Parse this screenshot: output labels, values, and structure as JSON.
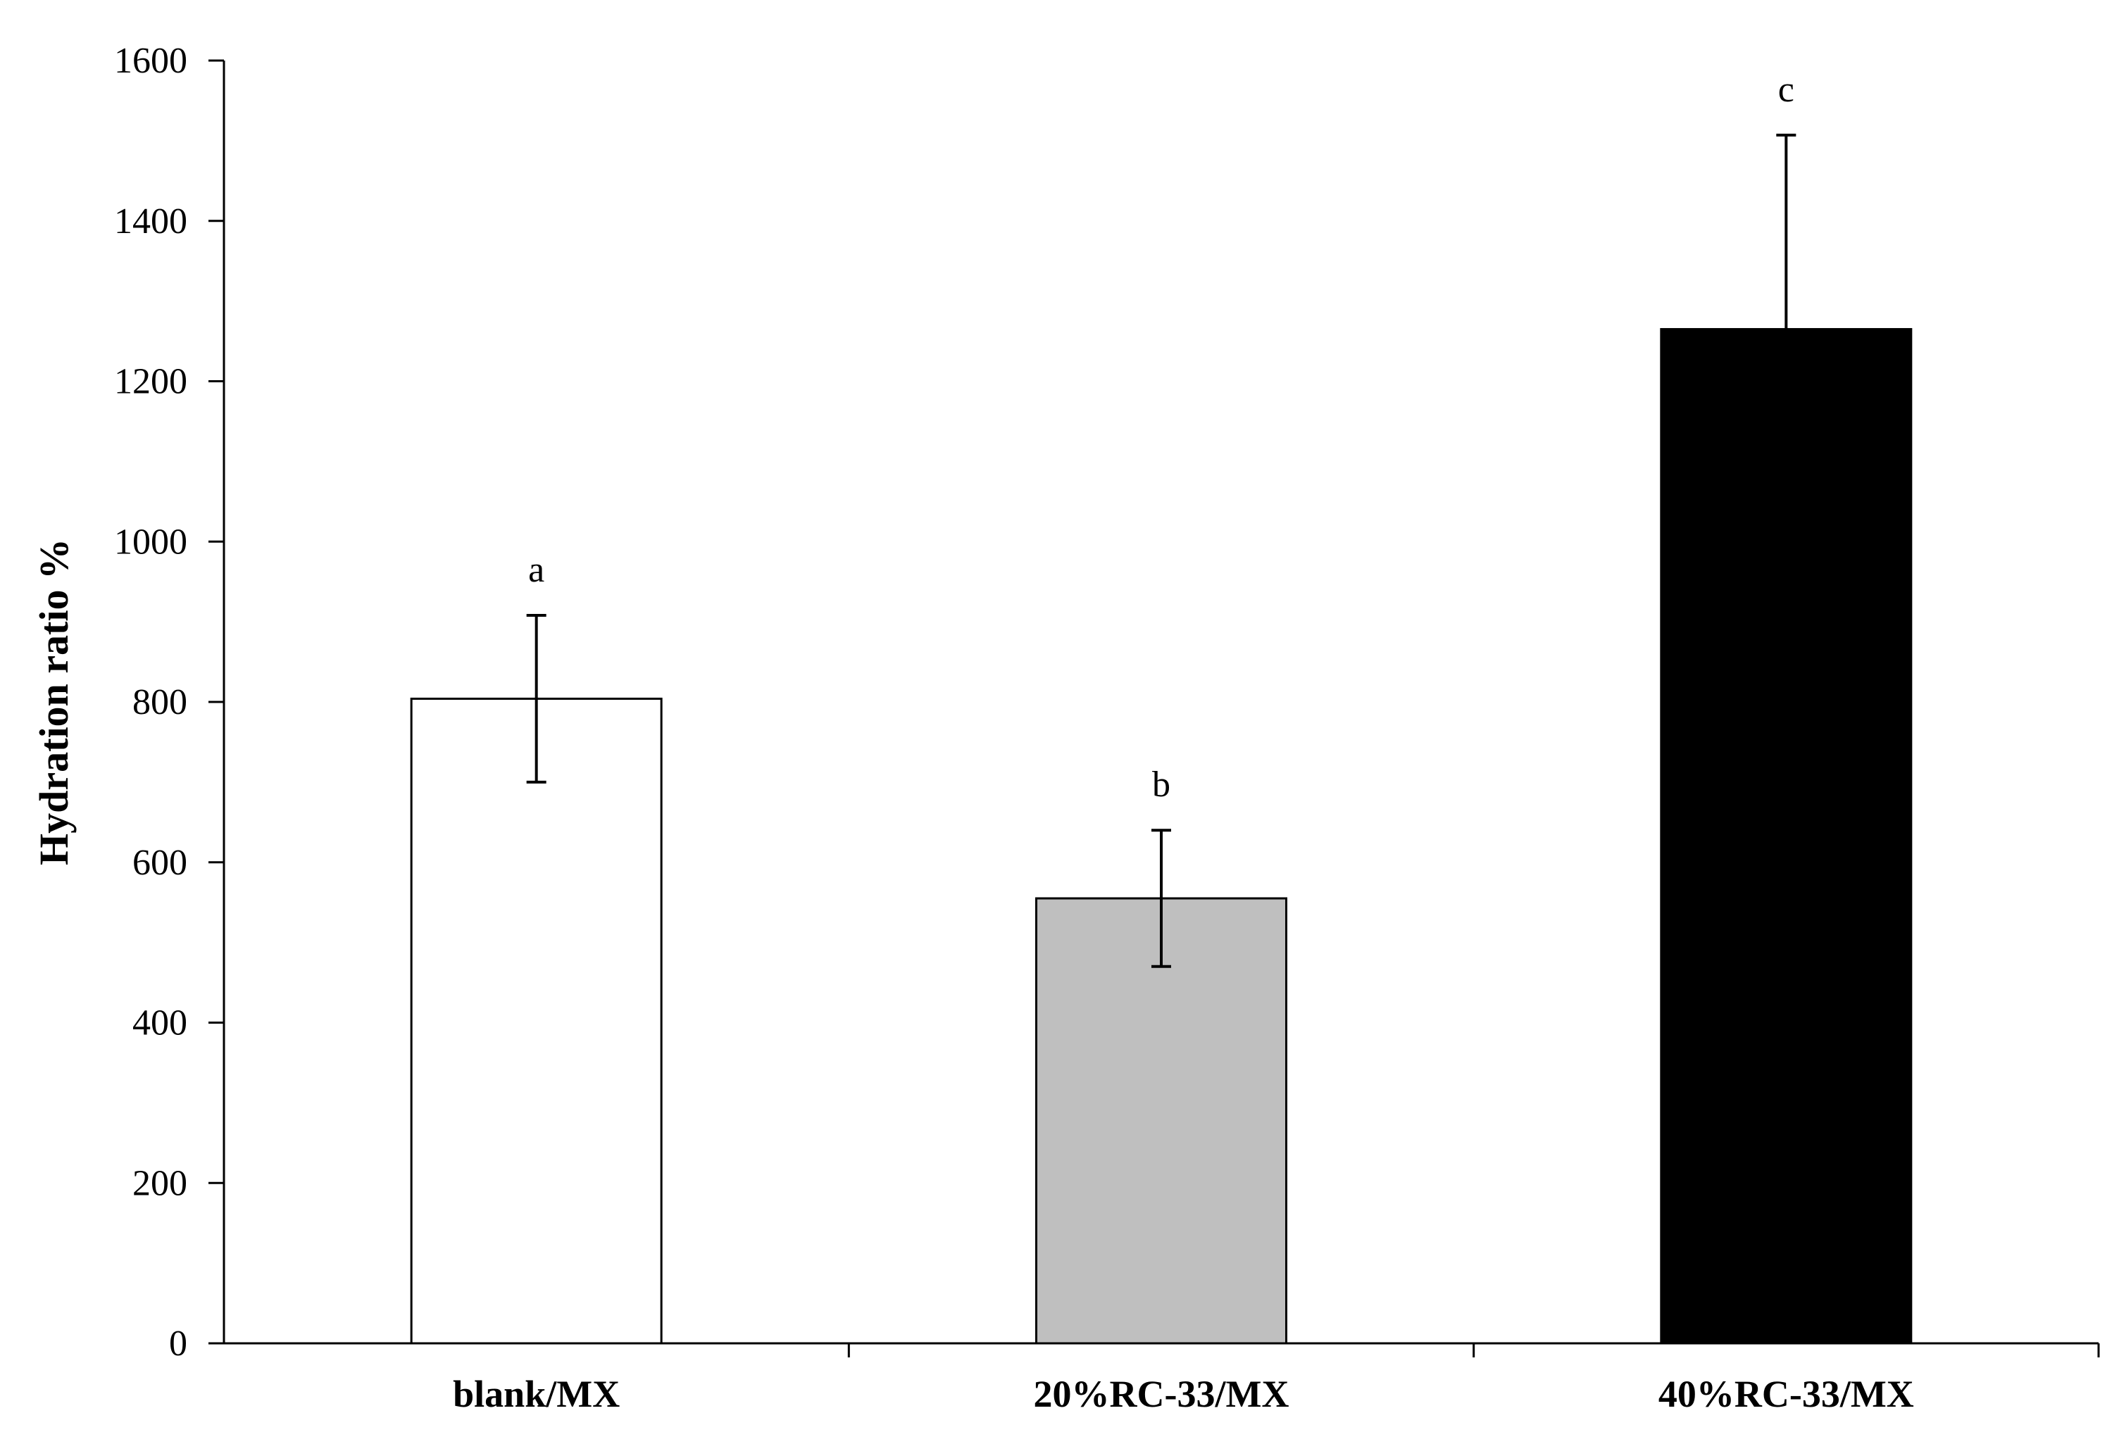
{
  "chart_data": {
    "type": "bar",
    "title": "",
    "xlabel": "",
    "ylabel": "Hydration ratio %",
    "ylim": [
      0,
      1600
    ],
    "yticks": [
      0,
      200,
      400,
      600,
      800,
      1000,
      1200,
      1400,
      1600
    ],
    "grid": false,
    "legend": "none",
    "categories": [
      "blank/MX",
      "20%RC-33/MX",
      "40%RC-33/MX"
    ],
    "values": [
      804,
      555,
      1265
    ],
    "error": [
      104,
      85,
      242
    ],
    "significance_labels": [
      "a",
      "b",
      "c"
    ],
    "bar_fill_colors": [
      "#ffffff",
      "#bfbfbf",
      "#000000"
    ],
    "bar_edge_color": "#000000"
  }
}
